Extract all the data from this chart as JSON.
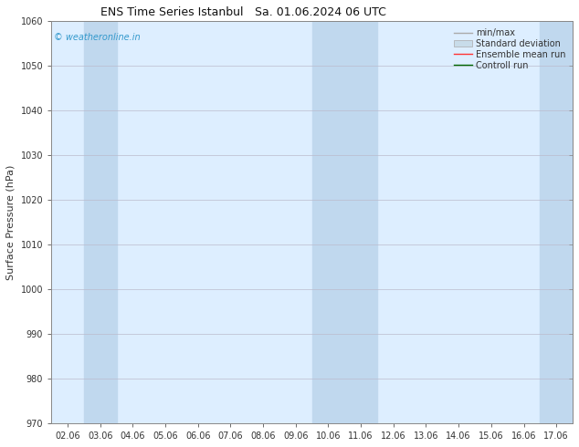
{
  "title_left": "ENS Time Series Istanbul",
  "title_right": "Sa. 01.06.2024 06 UTC",
  "ylabel": "Surface Pressure (hPa)",
  "ylim": [
    970,
    1060
  ],
  "yticks": [
    970,
    980,
    990,
    1000,
    1010,
    1020,
    1030,
    1040,
    1050,
    1060
  ],
  "x_labels": [
    "02.06",
    "03.06",
    "04.06",
    "05.06",
    "06.06",
    "07.06",
    "08.06",
    "09.06",
    "10.06",
    "11.06",
    "12.06",
    "13.06",
    "14.06",
    "15.06",
    "16.06",
    "17.06"
  ],
  "n_ticks": 16,
  "plot_bg_color": "#ddeeff",
  "band_color_darker": "#c0d8ee",
  "band_darker_indices": [
    1,
    8,
    9,
    15
  ],
  "watermark": "© weatheronline.in",
  "watermark_color": "#3399cc",
  "fig_bg_color": "#ffffff",
  "legend_labels": [
    "min/max",
    "Standard deviation",
    "Ensemble mean run",
    "Controll run"
  ],
  "legend_line_colors": [
    "#aaaaaa",
    "#bbccdd",
    "#ff0000",
    "#008800"
  ],
  "spine_color": "#888888",
  "tick_color": "#333333",
  "grid_color": "#bbbbcc",
  "title_fontsize": 9,
  "tick_fontsize": 7,
  "ylabel_fontsize": 8,
  "legend_fontsize": 7
}
